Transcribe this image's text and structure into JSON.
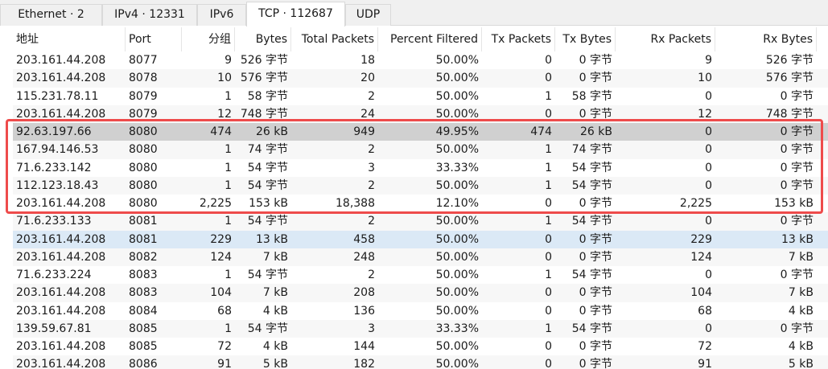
{
  "tabs": [
    {
      "label": "Ethernet · 2",
      "active": false
    },
    {
      "label": "IPv4 · 12331",
      "active": false
    },
    {
      "label": "IPv6",
      "active": false
    },
    {
      "label": "TCP · 112687",
      "active": true
    },
    {
      "label": "UDP",
      "active": false
    }
  ],
  "columns": [
    {
      "key": "address",
      "label": "地址",
      "align": "left",
      "sorted": false
    },
    {
      "key": "port",
      "label": "Port",
      "align": "left",
      "sorted": true
    },
    {
      "key": "packets",
      "label": "分组",
      "align": "right",
      "sorted": false
    },
    {
      "key": "bytes",
      "label": "Bytes",
      "align": "right",
      "sorted": false
    },
    {
      "key": "total_packets",
      "label": "Total Packets",
      "align": "right",
      "sorted": false
    },
    {
      "key": "percent_filtered",
      "label": "Percent Filtered",
      "align": "right",
      "sorted": false
    },
    {
      "key": "tx_packets",
      "label": "Tx Packets",
      "align": "right",
      "sorted": false
    },
    {
      "key": "tx_bytes",
      "label": "Tx Bytes",
      "align": "right",
      "sorted": false
    },
    {
      "key": "rx_packets",
      "label": "Rx Packets",
      "align": "right",
      "sorted": false
    },
    {
      "key": "rx_bytes",
      "label": "Rx Bytes",
      "align": "right",
      "sorted": false
    }
  ],
  "sort_indicator": "^",
  "rows": [
    {
      "address": "203.161.44.208",
      "port": "8077",
      "packets": "9",
      "bytes": "526 字节",
      "total_packets": "18",
      "percent_filtered": "50.00%",
      "tx_packets": "0",
      "tx_bytes": "0 字节",
      "rx_packets": "9",
      "rx_bytes": "526 字节",
      "state": "normal"
    },
    {
      "address": "203.161.44.208",
      "port": "8078",
      "packets": "10",
      "bytes": "576 字节",
      "total_packets": "20",
      "percent_filtered": "50.00%",
      "tx_packets": "0",
      "tx_bytes": "0 字节",
      "rx_packets": "10",
      "rx_bytes": "576 字节",
      "state": "normal"
    },
    {
      "address": "115.231.78.11",
      "port": "8079",
      "packets": "1",
      "bytes": "58 字节",
      "total_packets": "2",
      "percent_filtered": "50.00%",
      "tx_packets": "1",
      "tx_bytes": "58 字节",
      "rx_packets": "0",
      "rx_bytes": "0 字节",
      "state": "normal"
    },
    {
      "address": "203.161.44.208",
      "port": "8079",
      "packets": "12",
      "bytes": "748 字节",
      "total_packets": "24",
      "percent_filtered": "50.00%",
      "tx_packets": "0",
      "tx_bytes": "0 字节",
      "rx_packets": "12",
      "rx_bytes": "748 字节",
      "state": "normal"
    },
    {
      "address": "92.63.197.66",
      "port": "8080",
      "packets": "474",
      "bytes": "26 kB",
      "total_packets": "949",
      "percent_filtered": "49.95%",
      "tx_packets": "474",
      "tx_bytes": "26 kB",
      "rx_packets": "0",
      "rx_bytes": "0 字节",
      "state": "selected-inactive"
    },
    {
      "address": "167.94.146.53",
      "port": "8080",
      "packets": "1",
      "bytes": "74 字节",
      "total_packets": "2",
      "percent_filtered": "50.00%",
      "tx_packets": "1",
      "tx_bytes": "74 字节",
      "rx_packets": "0",
      "rx_bytes": "0 字节",
      "state": "normal"
    },
    {
      "address": "71.6.233.142",
      "port": "8080",
      "packets": "1",
      "bytes": "54 字节",
      "total_packets": "3",
      "percent_filtered": "33.33%",
      "tx_packets": "1",
      "tx_bytes": "54 字节",
      "rx_packets": "0",
      "rx_bytes": "0 字节",
      "state": "normal"
    },
    {
      "address": "112.123.18.43",
      "port": "8080",
      "packets": "1",
      "bytes": "54 字节",
      "total_packets": "2",
      "percent_filtered": "50.00%",
      "tx_packets": "1",
      "tx_bytes": "54 字节",
      "rx_packets": "0",
      "rx_bytes": "0 字节",
      "state": "normal"
    },
    {
      "address": "203.161.44.208",
      "port": "8080",
      "packets": "2,225",
      "bytes": "153 kB",
      "total_packets": "18,388",
      "percent_filtered": "12.10%",
      "tx_packets": "0",
      "tx_bytes": "0 字节",
      "rx_packets": "2,225",
      "rx_bytes": "153 kB",
      "state": "normal"
    },
    {
      "address": "71.6.233.133",
      "port": "8081",
      "packets": "1",
      "bytes": "54 字节",
      "total_packets": "2",
      "percent_filtered": "50.00%",
      "tx_packets": "1",
      "tx_bytes": "54 字节",
      "rx_packets": "0",
      "rx_bytes": "0 字节",
      "state": "normal"
    },
    {
      "address": "203.161.44.208",
      "port": "8081",
      "packets": "229",
      "bytes": "13 kB",
      "total_packets": "458",
      "percent_filtered": "50.00%",
      "tx_packets": "0",
      "tx_bytes": "0 字节",
      "rx_packets": "229",
      "rx_bytes": "13 kB",
      "state": "hover"
    },
    {
      "address": "203.161.44.208",
      "port": "8082",
      "packets": "124",
      "bytes": "7 kB",
      "total_packets": "248",
      "percent_filtered": "50.00%",
      "tx_packets": "0",
      "tx_bytes": "0 字节",
      "rx_packets": "124",
      "rx_bytes": "7 kB",
      "state": "normal"
    },
    {
      "address": "71.6.233.224",
      "port": "8083",
      "packets": "1",
      "bytes": "54 字节",
      "total_packets": "2",
      "percent_filtered": "50.00%",
      "tx_packets": "1",
      "tx_bytes": "54 字节",
      "rx_packets": "0",
      "rx_bytes": "0 字节",
      "state": "normal"
    },
    {
      "address": "203.161.44.208",
      "port": "8083",
      "packets": "104",
      "bytes": "7 kB",
      "total_packets": "208",
      "percent_filtered": "50.00%",
      "tx_packets": "0",
      "tx_bytes": "0 字节",
      "rx_packets": "104",
      "rx_bytes": "7 kB",
      "state": "normal"
    },
    {
      "address": "203.161.44.208",
      "port": "8084",
      "packets": "68",
      "bytes": "4 kB",
      "total_packets": "136",
      "percent_filtered": "50.00%",
      "tx_packets": "0",
      "tx_bytes": "0 字节",
      "rx_packets": "68",
      "rx_bytes": "4 kB",
      "state": "normal"
    },
    {
      "address": "139.59.67.81",
      "port": "8085",
      "packets": "1",
      "bytes": "54 字节",
      "total_packets": "3",
      "percent_filtered": "33.33%",
      "tx_packets": "1",
      "tx_bytes": "54 字节",
      "rx_packets": "0",
      "rx_bytes": "0 字节",
      "state": "normal"
    },
    {
      "address": "203.161.44.208",
      "port": "8085",
      "packets": "72",
      "bytes": "4 kB",
      "total_packets": "144",
      "percent_filtered": "50.00%",
      "tx_packets": "0",
      "tx_bytes": "0 字节",
      "rx_packets": "72",
      "rx_bytes": "4 kB",
      "state": "normal"
    },
    {
      "address": "203.161.44.208",
      "port": "8086",
      "packets": "91",
      "bytes": "5 kB",
      "total_packets": "182",
      "percent_filtered": "50.00%",
      "tx_packets": "0",
      "tx_bytes": "0 字节",
      "rx_packets": "91",
      "rx_bytes": "5 kB",
      "state": "normal"
    }
  ],
  "highlight_rows": [
    4,
    8
  ],
  "colors": {
    "highlight_border": "#ee4b4b",
    "selected_inactive": "#d0d0d0",
    "hover_row": "#dbe9f6",
    "alt_row": "#f7f7f7"
  }
}
